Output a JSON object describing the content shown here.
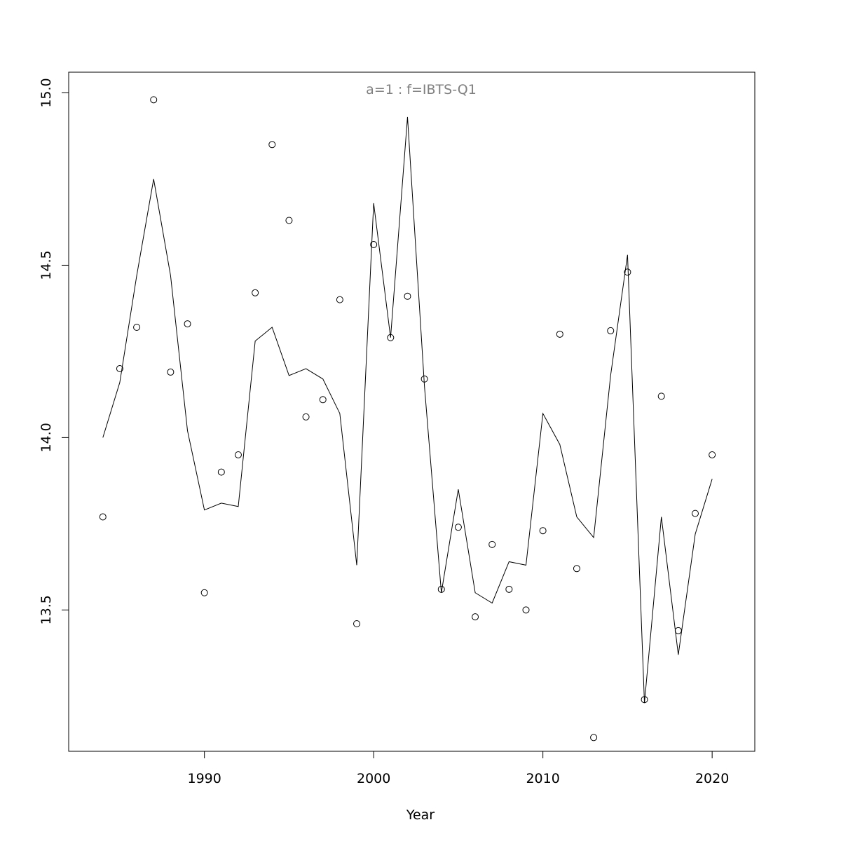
{
  "chart_data": {
    "type": "scatter",
    "title": "a=1  :  f=IBTS-Q1",
    "xlabel": "Year",
    "ylabel": "",
    "xlim": [
      1981.98,
      2022.52
    ],
    "ylim": [
      13.09,
      15.06
    ],
    "xticks": [
      1990,
      2000,
      2010,
      2020
    ],
    "yticks": [
      13.5,
      14.0,
      14.5,
      15.0
    ],
    "ytick_labels": [
      "13.5",
      "14.0",
      "14.5",
      "15.0"
    ],
    "grid": false,
    "legend": "none",
    "colors": {
      "title": "#808080",
      "ink": "#000000",
      "background": "#ffffff"
    },
    "x": [
      1984,
      1985,
      1986,
      1987,
      1988,
      1989,
      1990,
      1991,
      1992,
      1993,
      1994,
      1995,
      1996,
      1997,
      1998,
      1999,
      2000,
      2001,
      2002,
      2003,
      2004,
      2005,
      2006,
      2007,
      2008,
      2009,
      2010,
      2011,
      2012,
      2013,
      2014,
      2015,
      2016,
      2017,
      2018,
      2019,
      2020
    ],
    "series": [
      {
        "kind": "points",
        "values": [
          13.77,
          14.2,
          14.32,
          14.98,
          14.19,
          14.33,
          13.55,
          13.9,
          13.95,
          14.42,
          14.85,
          14.63,
          14.06,
          14.11,
          14.4,
          13.46,
          14.56,
          14.29,
          14.41,
          14.17,
          13.56,
          13.74,
          13.48,
          13.69,
          13.56,
          13.5,
          13.73,
          14.3,
          13.62,
          13.13,
          14.31,
          14.48,
          13.24,
          14.12,
          13.44,
          13.78,
          13.95
        ]
      },
      {
        "kind": "line",
        "values": [
          14.0,
          14.16,
          14.47,
          14.75,
          14.47,
          14.02,
          13.79,
          13.81,
          13.8,
          14.28,
          14.32,
          14.18,
          14.2,
          14.17,
          14.07,
          13.63,
          14.68,
          14.29,
          14.93,
          14.15,
          13.55,
          13.85,
          13.55,
          13.52,
          13.64,
          13.63,
          14.07,
          13.98,
          13.77,
          13.71,
          14.18,
          14.53,
          13.23,
          13.77,
          13.37,
          13.72,
          13.88
        ]
      }
    ]
  }
}
